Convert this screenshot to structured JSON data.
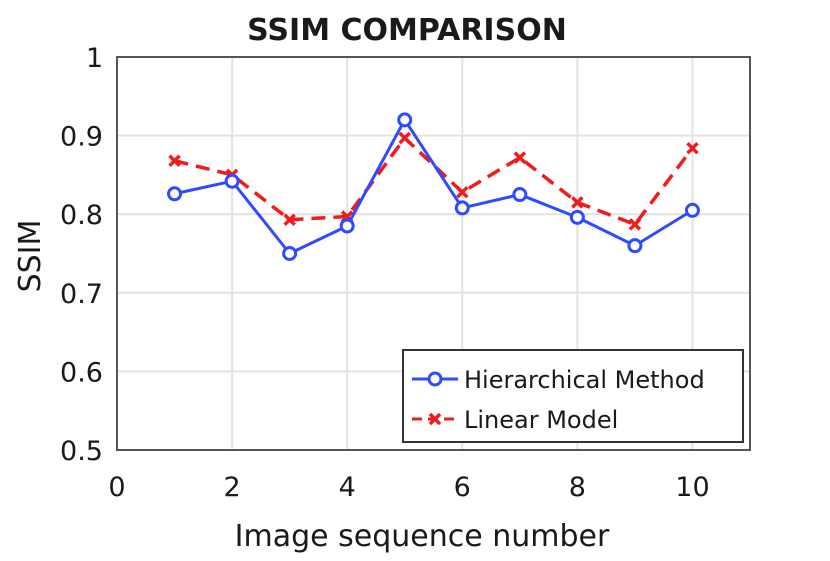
{
  "chart_data": {
    "type": "line",
    "title": "SSIM COMPARISON",
    "xlabel": "Image sequence number",
    "ylabel": "SSIM",
    "xlim": [
      0,
      11
    ],
    "ylim": [
      0.5,
      1
    ],
    "xticks": [
      0,
      2,
      4,
      6,
      8,
      10
    ],
    "yticks": [
      0.5,
      0.6,
      0.7,
      0.8,
      0.9,
      1
    ],
    "ytick_labels": [
      "0.5",
      "0.6",
      "0.7",
      "0.8",
      "0.9",
      "1"
    ],
    "grid": true,
    "legend_position": "bottom-right",
    "x": [
      1,
      2,
      3,
      4,
      5,
      6,
      7,
      8,
      9,
      10
    ],
    "series": [
      {
        "name": "Hierarchical Method",
        "color": "#2f4bff",
        "line_style": "solid",
        "marker": "circle",
        "values": [
          0.826,
          0.842,
          0.75,
          0.785,
          0.92,
          0.808,
          0.825,
          0.796,
          0.76,
          0.805
        ]
      },
      {
        "name": "Linear Model",
        "color": "#ee1c1c",
        "line_style": "dashed",
        "marker": "x",
        "values": [
          0.868,
          0.85,
          0.793,
          0.797,
          0.897,
          0.828,
          0.872,
          0.815,
          0.787,
          0.884
        ]
      }
    ]
  }
}
